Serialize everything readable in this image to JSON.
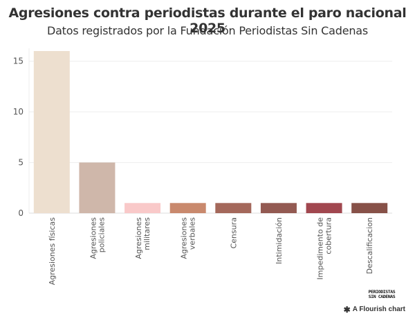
{
  "header": {
    "title": "Agresiones contra periodistas durante el paro nacional 2025",
    "subtitle": "Datos registrados por la Fundación Periodistas Sin Cadenas"
  },
  "footer": {
    "logo_line1": "PERIODISTAS",
    "logo_line2": "SIN CADENAS",
    "flourish_icon": "flourish-star-icon",
    "flourish_label": "A Flourish chart"
  },
  "chart_data": {
    "type": "bar",
    "title": "Agresiones contra periodistas durante el paro nacional 2025",
    "subtitle": "Datos registrados por la Fundación Periodistas Sin Cadenas",
    "xlabel": "",
    "ylabel": "",
    "categories": [
      [
        "Agresiones físicas"
      ],
      [
        "Agresiones",
        "policiales"
      ],
      [
        "Agresiones",
        "militares"
      ],
      [
        "Agresiones",
        "verbales"
      ],
      [
        "Censura"
      ],
      [
        "Intimidación"
      ],
      [
        "Impedimento de",
        "cobertura"
      ],
      [
        "Descalificacion"
      ]
    ],
    "values": [
      16,
      5,
      1,
      1,
      1,
      1,
      1,
      1
    ],
    "colors": [
      "#eddfcf",
      "#cfb7aa",
      "#f9c9c9",
      "#c9896d",
      "#a4685b",
      "#935a52",
      "#a1474f",
      "#875148"
    ],
    "ylim": [
      0,
      16
    ],
    "yticks": [
      0,
      5,
      10,
      15
    ],
    "grid": true,
    "legend": "none"
  }
}
